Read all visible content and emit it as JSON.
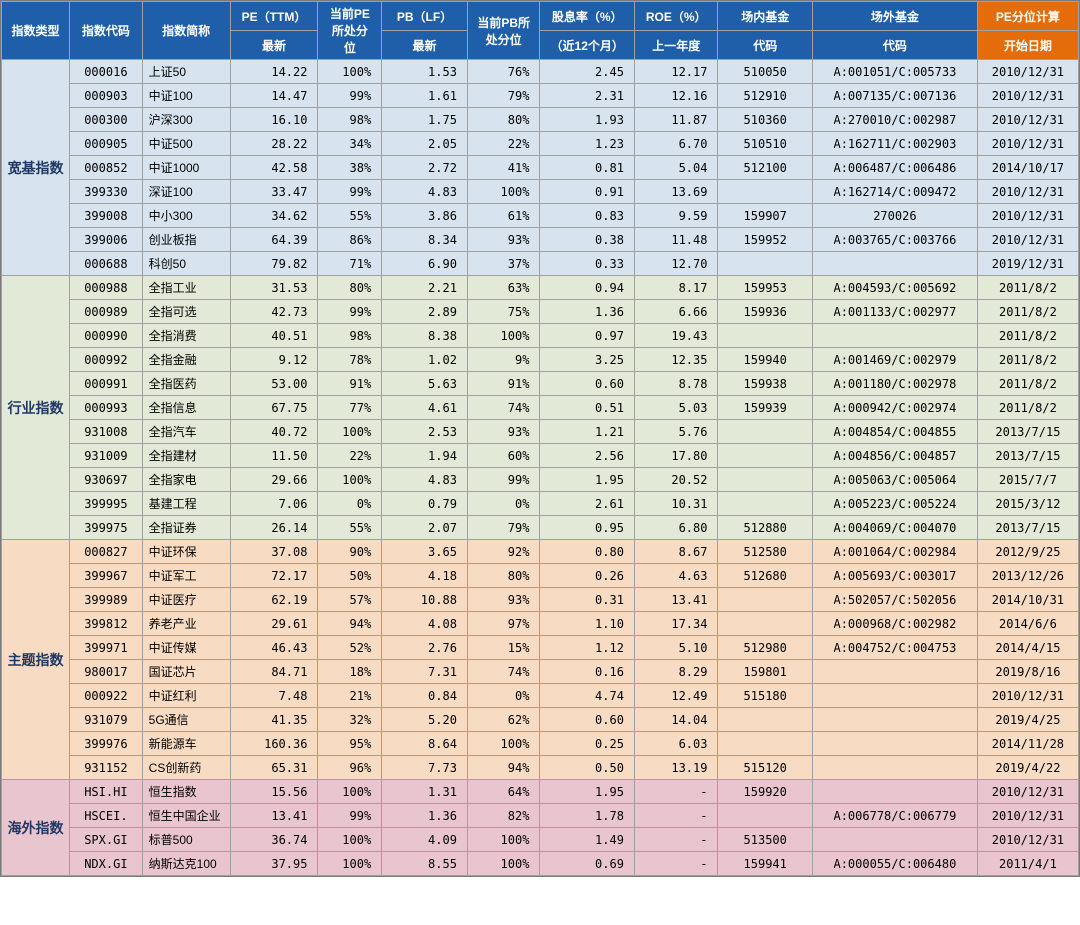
{
  "headers": {
    "cat": "指数类型",
    "code": "指数代码",
    "name": "指数简称",
    "pe_top": "PE（TTM）",
    "pe_bot": "最新",
    "pepct_top": "当前PE",
    "pepct_mid": "所处分",
    "pepct_bot": "位",
    "pb_top": "PB（LF）",
    "pb_bot": "最新",
    "pbpct_top": "当前PB所",
    "pbpct_bot": "处分位",
    "div_top": "股息率（%）",
    "div_bot": "（近12个月）",
    "roe_top": "ROE（%）",
    "roe_bot": "上一年度",
    "fund1_top": "场内基金",
    "fund1_bot": "代码",
    "fund2_top": "场外基金",
    "fund2_bot": "代码",
    "start_top": "PE分位计算",
    "start_bot": "开始日期"
  },
  "colors": {
    "header_blue": "#1f5ea8",
    "header_orange": "#e46c0a",
    "group_bg": {
      "broad": "#d7e4ef",
      "industry": "#e2e9d6",
      "theme": "#f7dcc3",
      "overseas": "#e8c5cf"
    },
    "border": "#a0a0a0",
    "cat_text": "#203864"
  },
  "groups": [
    {
      "key": "broad",
      "label": "宽基指数",
      "bg": "#d7e4ef",
      "rows": [
        {
          "code": "000016",
          "name": "上证50",
          "pe": "14.22",
          "pepct": "100%",
          "pb": "1.53",
          "pbpct": "76%",
          "div": "2.45",
          "roe": "12.17",
          "f1": "510050",
          "f2": "A:001051/C:005733",
          "start": "2010/12/31"
        },
        {
          "code": "000903",
          "name": "中证100",
          "pe": "14.47",
          "pepct": "99%",
          "pb": "1.61",
          "pbpct": "79%",
          "div": "2.31",
          "roe": "12.16",
          "f1": "512910",
          "f2": "A:007135/C:007136",
          "start": "2010/12/31"
        },
        {
          "code": "000300",
          "name": "沪深300",
          "pe": "16.10",
          "pepct": "98%",
          "pb": "1.75",
          "pbpct": "80%",
          "div": "1.93",
          "roe": "11.87",
          "f1": "510360",
          "f2": "A:270010/C:002987",
          "start": "2010/12/31"
        },
        {
          "code": "000905",
          "name": "中证500",
          "pe": "28.22",
          "pepct": "34%",
          "pb": "2.05",
          "pbpct": "22%",
          "div": "1.23",
          "roe": "6.70",
          "f1": "510510",
          "f2": "A:162711/C:002903",
          "start": "2010/12/31"
        },
        {
          "code": "000852",
          "name": "中证1000",
          "pe": "42.58",
          "pepct": "38%",
          "pb": "2.72",
          "pbpct": "41%",
          "div": "0.81",
          "roe": "5.04",
          "f1": "512100",
          "f2": "A:006487/C:006486",
          "start": "2014/10/17"
        },
        {
          "code": "399330",
          "name": "深证100",
          "pe": "33.47",
          "pepct": "99%",
          "pb": "4.83",
          "pbpct": "100%",
          "div": "0.91",
          "roe": "13.69",
          "f1": "",
          "f2": "A:162714/C:009472",
          "start": "2010/12/31"
        },
        {
          "code": "399008",
          "name": "中小300",
          "pe": "34.62",
          "pepct": "55%",
          "pb": "3.86",
          "pbpct": "61%",
          "div": "0.83",
          "roe": "9.59",
          "f1": "159907",
          "f2": "270026",
          "start": "2010/12/31"
        },
        {
          "code": "399006",
          "name": "创业板指",
          "pe": "64.39",
          "pepct": "86%",
          "pb": "8.34",
          "pbpct": "93%",
          "div": "0.38",
          "roe": "11.48",
          "f1": "159952",
          "f2": "A:003765/C:003766",
          "start": "2010/12/31"
        },
        {
          "code": "000688",
          "name": "科创50",
          "pe": "79.82",
          "pepct": "71%",
          "pb": "6.90",
          "pbpct": "37%",
          "div": "0.33",
          "roe": "12.70",
          "f1": "",
          "f2": "",
          "start": "2019/12/31"
        }
      ]
    },
    {
      "key": "industry",
      "label": "行业指数",
      "bg": "#e2e9d6",
      "rows": [
        {
          "code": "000988",
          "name": "全指工业",
          "pe": "31.53",
          "pepct": "80%",
          "pb": "2.21",
          "pbpct": "63%",
          "div": "0.94",
          "roe": "8.17",
          "f1": "159953",
          "f2": "A:004593/C:005692",
          "start": "2011/8/2"
        },
        {
          "code": "000989",
          "name": "全指可选",
          "pe": "42.73",
          "pepct": "99%",
          "pb": "2.89",
          "pbpct": "75%",
          "div": "1.36",
          "roe": "6.66",
          "f1": "159936",
          "f2": "A:001133/C:002977",
          "start": "2011/8/2"
        },
        {
          "code": "000990",
          "name": "全指消费",
          "pe": "40.51",
          "pepct": "98%",
          "pb": "8.38",
          "pbpct": "100%",
          "div": "0.97",
          "roe": "19.43",
          "f1": "",
          "f2": "",
          "start": "2011/8/2"
        },
        {
          "code": "000992",
          "name": "全指金融",
          "pe": "9.12",
          "pepct": "78%",
          "pb": "1.02",
          "pbpct": "9%",
          "div": "3.25",
          "roe": "12.35",
          "f1": "159940",
          "f2": "A:001469/C:002979",
          "start": "2011/8/2"
        },
        {
          "code": "000991",
          "name": "全指医药",
          "pe": "53.00",
          "pepct": "91%",
          "pb": "5.63",
          "pbpct": "91%",
          "div": "0.60",
          "roe": "8.78",
          "f1": "159938",
          "f2": "A:001180/C:002978",
          "start": "2011/8/2"
        },
        {
          "code": "000993",
          "name": "全指信息",
          "pe": "67.75",
          "pepct": "77%",
          "pb": "4.61",
          "pbpct": "74%",
          "div": "0.51",
          "roe": "5.03",
          "f1": "159939",
          "f2": "A:000942/C:002974",
          "start": "2011/8/2"
        },
        {
          "code": "931008",
          "name": "全指汽车",
          "pe": "40.72",
          "pepct": "100%",
          "pb": "2.53",
          "pbpct": "93%",
          "div": "1.21",
          "roe": "5.76",
          "f1": "",
          "f2": "A:004854/C:004855",
          "start": "2013/7/15"
        },
        {
          "code": "931009",
          "name": "全指建材",
          "pe": "11.50",
          "pepct": "22%",
          "pb": "1.94",
          "pbpct": "60%",
          "div": "2.56",
          "roe": "17.80",
          "f1": "",
          "f2": "A:004856/C:004857",
          "start": "2013/7/15"
        },
        {
          "code": "930697",
          "name": "全指家电",
          "pe": "29.66",
          "pepct": "100%",
          "pb": "4.83",
          "pbpct": "99%",
          "div": "1.95",
          "roe": "20.52",
          "f1": "",
          "f2": "A:005063/C:005064",
          "start": "2015/7/7"
        },
        {
          "code": "399995",
          "name": "基建工程",
          "pe": "7.06",
          "pepct": "0%",
          "pb": "0.79",
          "pbpct": "0%",
          "div": "2.61",
          "roe": "10.31",
          "f1": "",
          "f2": "A:005223/C:005224",
          "start": "2015/3/12"
        },
        {
          "code": "399975",
          "name": "全指证券",
          "pe": "26.14",
          "pepct": "55%",
          "pb": "2.07",
          "pbpct": "79%",
          "div": "0.95",
          "roe": "6.80",
          "f1": "512880",
          "f2": "A:004069/C:004070",
          "start": "2013/7/15"
        }
      ]
    },
    {
      "key": "theme",
      "label": "主题指数",
      "bg": "#f7dcc3",
      "rows": [
        {
          "code": "000827",
          "name": "中证环保",
          "pe": "37.08",
          "pepct": "90%",
          "pb": "3.65",
          "pbpct": "92%",
          "div": "0.80",
          "roe": "8.67",
          "f1": "512580",
          "f2": "A:001064/C:002984",
          "start": "2012/9/25"
        },
        {
          "code": "399967",
          "name": "中证军工",
          "pe": "72.17",
          "pepct": "50%",
          "pb": "4.18",
          "pbpct": "80%",
          "div": "0.26",
          "roe": "4.63",
          "f1": "512680",
          "f2": "A:005693/C:003017",
          "start": "2013/12/26"
        },
        {
          "code": "399989",
          "name": "中证医疗",
          "pe": "62.19",
          "pepct": "57%",
          "pb": "10.88",
          "pbpct": "93%",
          "div": "0.31",
          "roe": "13.41",
          "f1": "",
          "f2": "A:502057/C:502056",
          "start": "2014/10/31"
        },
        {
          "code": "399812",
          "name": "养老产业",
          "pe": "29.61",
          "pepct": "94%",
          "pb": "4.08",
          "pbpct": "97%",
          "div": "1.10",
          "roe": "17.34",
          "f1": "",
          "f2": "A:000968/C:002982",
          "start": "2014/6/6"
        },
        {
          "code": "399971",
          "name": "中证传媒",
          "pe": "46.43",
          "pepct": "52%",
          "pb": "2.76",
          "pbpct": "15%",
          "div": "1.12",
          "roe": "5.10",
          "f1": "512980",
          "f2": "A:004752/C:004753",
          "start": "2014/4/15"
        },
        {
          "code": "980017",
          "name": "国证芯片",
          "pe": "84.71",
          "pepct": "18%",
          "pb": "7.31",
          "pbpct": "74%",
          "div": "0.16",
          "roe": "8.29",
          "f1": "159801",
          "f2": "",
          "start": "2019/8/16"
        },
        {
          "code": "000922",
          "name": "中证红利",
          "pe": "7.48",
          "pepct": "21%",
          "pb": "0.84",
          "pbpct": "0%",
          "div": "4.74",
          "roe": "12.49",
          "f1": "515180",
          "f2": "",
          "start": "2010/12/31"
        },
        {
          "code": "931079",
          "name": "5G通信",
          "pe": "41.35",
          "pepct": "32%",
          "pb": "5.20",
          "pbpct": "62%",
          "div": "0.60",
          "roe": "14.04",
          "f1": "",
          "f2": "",
          "start": "2019/4/25"
        },
        {
          "code": "399976",
          "name": "新能源车",
          "pe": "160.36",
          "pepct": "95%",
          "pb": "8.64",
          "pbpct": "100%",
          "div": "0.25",
          "roe": "6.03",
          "f1": "",
          "f2": "",
          "start": "2014/11/28"
        },
        {
          "code": "931152",
          "name": "CS创新药",
          "pe": "65.31",
          "pepct": "96%",
          "pb": "7.73",
          "pbpct": "94%",
          "div": "0.50",
          "roe": "13.19",
          "f1": "515120",
          "f2": "",
          "start": "2019/4/22"
        }
      ]
    },
    {
      "key": "overseas",
      "label": "海外指数",
      "bg": "#e8c5cf",
      "rows": [
        {
          "code": "HSI.HI",
          "name": "恒生指数",
          "pe": "15.56",
          "pepct": "100%",
          "pb": "1.31",
          "pbpct": "64%",
          "div": "1.95",
          "roe": "-",
          "f1": "159920",
          "f2": "",
          "start": "2010/12/31"
        },
        {
          "code": "HSCEI.",
          "name": "恒生中国企业",
          "pe": "13.41",
          "pepct": "99%",
          "pb": "1.36",
          "pbpct": "82%",
          "div": "1.78",
          "roe": "-",
          "f1": "",
          "f2": "A:006778/C:006779",
          "start": "2010/12/31"
        },
        {
          "code": "SPX.GI",
          "name": "标普500",
          "pe": "36.74",
          "pepct": "100%",
          "pb": "4.09",
          "pbpct": "100%",
          "div": "1.49",
          "roe": "-",
          "f1": "513500",
          "f2": "",
          "start": "2010/12/31"
        },
        {
          "code": "NDX.GI",
          "name": "纳斯达克100",
          "pe": "37.95",
          "pepct": "100%",
          "pb": "8.55",
          "pbpct": "100%",
          "div": "0.69",
          "roe": "-",
          "f1": "159941",
          "f2": "A:000055/C:006480",
          "start": "2011/4/1"
        }
      ]
    }
  ]
}
